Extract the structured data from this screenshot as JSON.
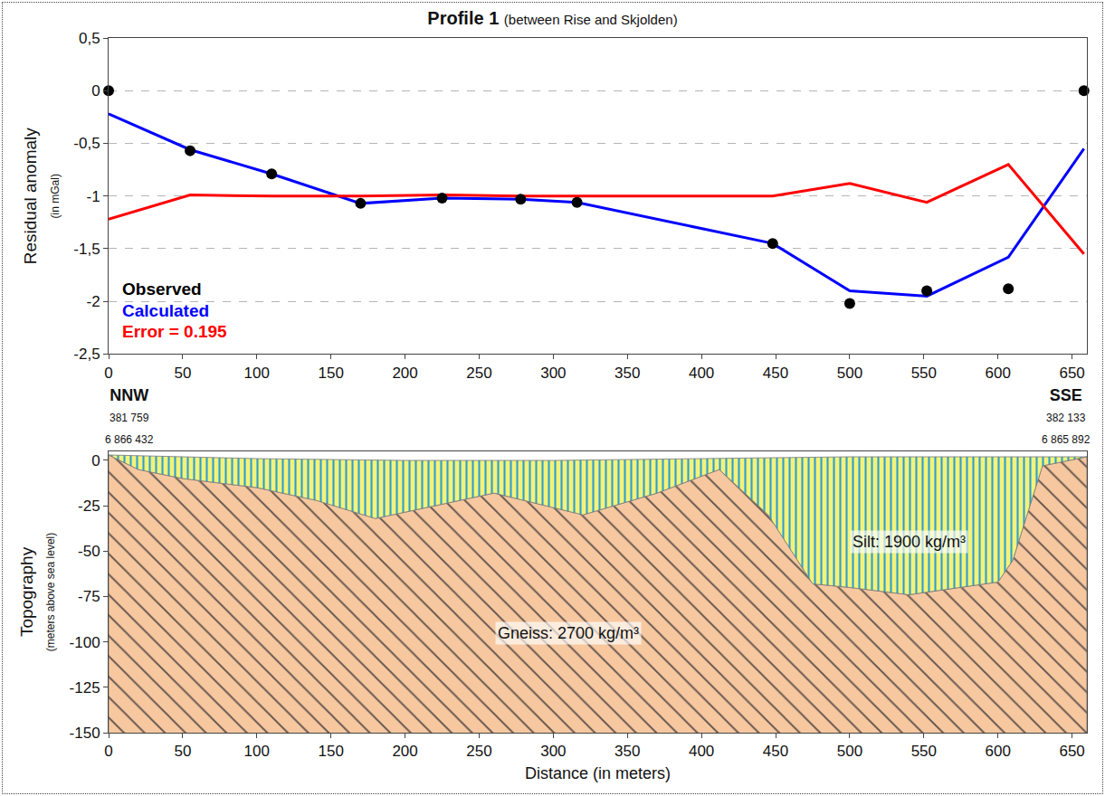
{
  "chart_data": [
    {
      "type": "line",
      "title": "Profile 1",
      "subtitle": "(between Rise and Skjolden)",
      "y_label": "Residual anomaly",
      "y_sublabel": "(in mGal)",
      "x": [
        0,
        55,
        110,
        170,
        225,
        278,
        316,
        448,
        500,
        552,
        607,
        658
      ],
      "series": [
        {
          "name": "Observed",
          "color": "#000000",
          "type": "scatter",
          "marker": "circle",
          "values": [
            0,
            -0.57,
            -0.79,
            -1.07,
            -1.02,
            -1.03,
            -1.06,
            -1.45,
            -2.02,
            -1.9,
            -1.88,
            0
          ]
        },
        {
          "name": "Calculated",
          "color": "#0000ff",
          "type": "line",
          "values": [
            -0.22,
            -0.56,
            -0.79,
            -1.07,
            -1.02,
            -1.03,
            -1.06,
            -1.45,
            -1.9,
            -1.95,
            -1.58,
            -0.55
          ]
        },
        {
          "name": "Error = 0.195",
          "color": "#ff0000",
          "type": "line",
          "values": [
            -1.22,
            -0.99,
            -1.0,
            -1.0,
            -0.99,
            -1.0,
            -1.0,
            -1.0,
            -0.88,
            -1.06,
            -0.7,
            -1.55
          ]
        }
      ],
      "xlim": [
        0,
        660
      ],
      "ylim": [
        -2.5,
        0.5
      ],
      "xticks": [
        0,
        50,
        100,
        150,
        200,
        250,
        300,
        350,
        400,
        450,
        500,
        550,
        600,
        650
      ],
      "yticks": [
        {
          "value": -2.5,
          "label": "-2,5"
        },
        -2,
        {
          "value": -1.5,
          "label": "-1,5"
        },
        -1,
        {
          "value": -0.5,
          "label": "-0,5"
        },
        0,
        {
          "value": 0.5,
          "label": "0,5"
        }
      ],
      "grid": true,
      "legend": "lower left"
    },
    {
      "type": "area",
      "y_label": "Topography",
      "y_sublabel": "(meters above sea level)",
      "x_label": "Distance (in meters)",
      "ends": [
        {
          "text": "NNW",
          "easting": "381 759",
          "northing": "6 866 432"
        },
        {
          "text": "SSE",
          "easting": "382 133",
          "northing": "6 865 892"
        }
      ],
      "series": [
        {
          "name": "Silt: 1900 kg/m³",
          "color": "#f3f27a",
          "line_style": "vertical stripes",
          "x": [
            0,
            100,
            200,
            300,
            400,
            500,
            600,
            660
          ],
          "values": [
            3,
            1,
            0,
            0,
            1,
            2,
            2,
            2
          ],
          "label_at": [
            540,
            -45
          ]
        },
        {
          "name": "Gneiss: 2700 kg/m³",
          "color": "#f7c8a0",
          "line_style": "slanted stripes",
          "x": [
            0,
            20,
            50,
            100,
            140,
            180,
            220,
            260,
            320,
            370,
            412,
            445,
            475,
            500,
            540,
            600,
            610,
            630,
            660
          ],
          "values": [
            3,
            -5,
            -10,
            -15,
            -22,
            -32,
            -25,
            -18,
            -30,
            -18,
            -5,
            -30,
            -68,
            -70,
            -74,
            -67,
            -55,
            -3,
            2
          ],
          "label_at": [
            310,
            -95
          ]
        }
      ],
      "xlim": [
        0,
        660
      ],
      "ylim": [
        -150,
        5
      ],
      "xticks": [
        0,
        50,
        100,
        150,
        200,
        250,
        300,
        350,
        400,
        450,
        500,
        550,
        600,
        650
      ],
      "yticks": [
        -150,
        -125,
        -100,
        -75,
        -50,
        -25,
        0
      ],
      "grid": false
    }
  ]
}
